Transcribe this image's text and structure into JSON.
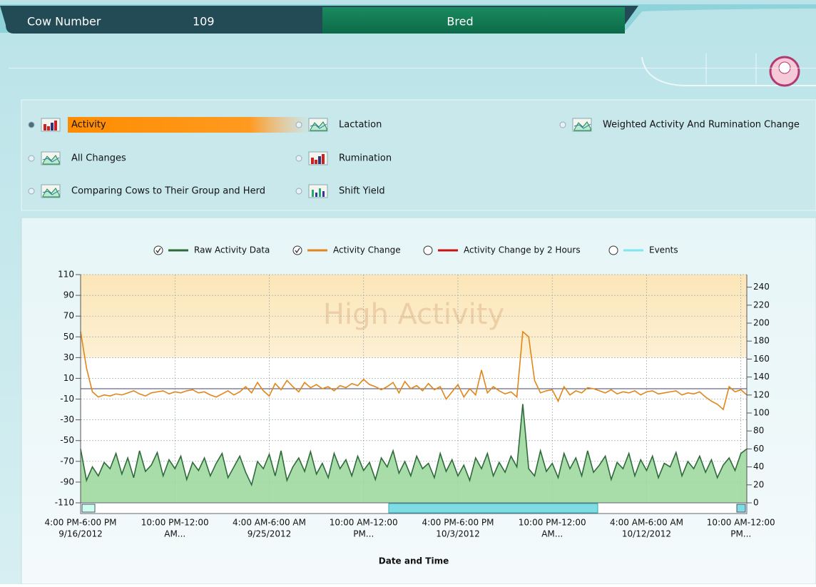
{
  "header": {
    "cow_number_label": "Cow Number",
    "cow_number": "109",
    "status": "Bred"
  },
  "options": [
    {
      "label": "Activity",
      "icon": "bar",
      "selected": true
    },
    {
      "label": "All Changes",
      "icon": "area",
      "selected": false
    },
    {
      "label": "Comparing Cows to Their Group and Herd",
      "icon": "area",
      "selected": false
    },
    {
      "label": "Lactation",
      "icon": "area",
      "selected": false
    },
    {
      "label": "Rumination",
      "icon": "bar",
      "selected": false
    },
    {
      "label": "Shift Yield",
      "icon": "dots",
      "selected": false
    },
    {
      "label": "Weighted Activity And Rumination Change",
      "icon": "area",
      "selected": false
    }
  ],
  "chart_data": {
    "type": "line",
    "xlabel": "Date and Time",
    "xlim": [
      0,
      113
    ],
    "xticks": [
      {
        "value": 0,
        "label": [
          "4:00 PM-6:00 PM",
          "9/16/2012"
        ]
      },
      {
        "value": 16,
        "label": [
          "10:00 PM-12:00",
          "AM..."
        ]
      },
      {
        "value": 32,
        "label": [
          "4:00 AM-6:00 AM",
          "9/25/2012"
        ]
      },
      {
        "value": 48,
        "label": [
          "10:00 AM-12:00",
          "PM..."
        ]
      },
      {
        "value": 64,
        "label": [
          "4:00 PM-6:00 PM",
          "10/3/2012"
        ]
      },
      {
        "value": 80,
        "label": [
          "10:00 PM-12:00",
          "AM..."
        ]
      },
      {
        "value": 96,
        "label": [
          "4:00 AM-6:00 AM",
          "10/12/2012"
        ]
      },
      {
        "value": 112,
        "label": [
          "10:00 AM-12:00",
          "PM..."
        ]
      }
    ],
    "ylim": [
      -110,
      110
    ],
    "yticks": [
      110,
      90,
      70,
      50,
      30,
      10,
      -10,
      -30,
      -50,
      -70,
      -90,
      -110
    ],
    "y2lim": [
      0,
      254
    ],
    "y2ticks": [
      240,
      220,
      200,
      180,
      160,
      140,
      120,
      100,
      80,
      60,
      40,
      20,
      0
    ],
    "grid": true,
    "reference_line": 0,
    "zones": [
      {
        "from": 30,
        "to": 110,
        "label": "High Activity"
      }
    ],
    "series": [
      {
        "name": "Raw Activity Data",
        "color": "#2e6b3a",
        "fill": "#9fd89f",
        "checked": true,
        "axis": "y2",
        "values": [
          60,
          25,
          40,
          30,
          45,
          38,
          55,
          32,
          50,
          28,
          58,
          35,
          42,
          56,
          30,
          48,
          38,
          52,
          26,
          45,
          36,
          50,
          30,
          44,
          55,
          28,
          40,
          52,
          34,
          20,
          46,
          38,
          54,
          30,
          58,
          25,
          40,
          50,
          35,
          57,
          32,
          44,
          28,
          55,
          38,
          48,
          30,
          52,
          36,
          45,
          26,
          50,
          40,
          58,
          33,
          46,
          30,
          52,
          38,
          44,
          28,
          55,
          35,
          48,
          30,
          42,
          25,
          50,
          38,
          55,
          30,
          45,
          34,
          52,
          40,
          110,
          38,
          30,
          58,
          35,
          44,
          28,
          55,
          38,
          50,
          30,
          58,
          34,
          42,
          52,
          26,
          45,
          38,
          55,
          30,
          48,
          36,
          52,
          28,
          44,
          40,
          56,
          30,
          46,
          38,
          52,
          34,
          48,
          28,
          42,
          50,
          36,
          55,
          60
        ]
      },
      {
        "name": "Activity Change",
        "color": "#e0861a",
        "checked": true,
        "axis": "y",
        "values": [
          55,
          20,
          -3,
          -8,
          -6,
          -7,
          -5,
          -6,
          -4,
          -2,
          -5,
          -7,
          -4,
          -3,
          -2,
          -5,
          -3,
          -4,
          -2,
          -1,
          -4,
          -3,
          -6,
          -8,
          -5,
          -2,
          -6,
          -3,
          2,
          -4,
          6,
          -2,
          -7,
          5,
          -1,
          8,
          2,
          -3,
          6,
          1,
          4,
          0,
          2,
          -2,
          3,
          1,
          5,
          3,
          9,
          4,
          2,
          -1,
          2,
          6,
          -4,
          7,
          0,
          3,
          -2,
          5,
          -1,
          2,
          -10,
          -3,
          4,
          -8,
          0,
          -6,
          18,
          -4,
          2,
          -2,
          -5,
          -3,
          -8,
          55,
          50,
          8,
          -4,
          -2,
          -1,
          -12,
          2,
          -6,
          -2,
          -4,
          1,
          0,
          -2,
          -4,
          -1,
          -5,
          -3,
          -4,
          -2,
          -6,
          -3,
          -2,
          -5,
          -4,
          -3,
          -2,
          -6,
          -4,
          -5,
          -3,
          -8,
          -12,
          -15,
          -20,
          2,
          -3,
          -1,
          -6
        ]
      },
      {
        "name": "Activity Change by 2 Hours",
        "color": "#cc1111",
        "checked": false
      },
      {
        "name": "Events",
        "color": "#7fe6f2",
        "checked": false
      }
    ]
  }
}
